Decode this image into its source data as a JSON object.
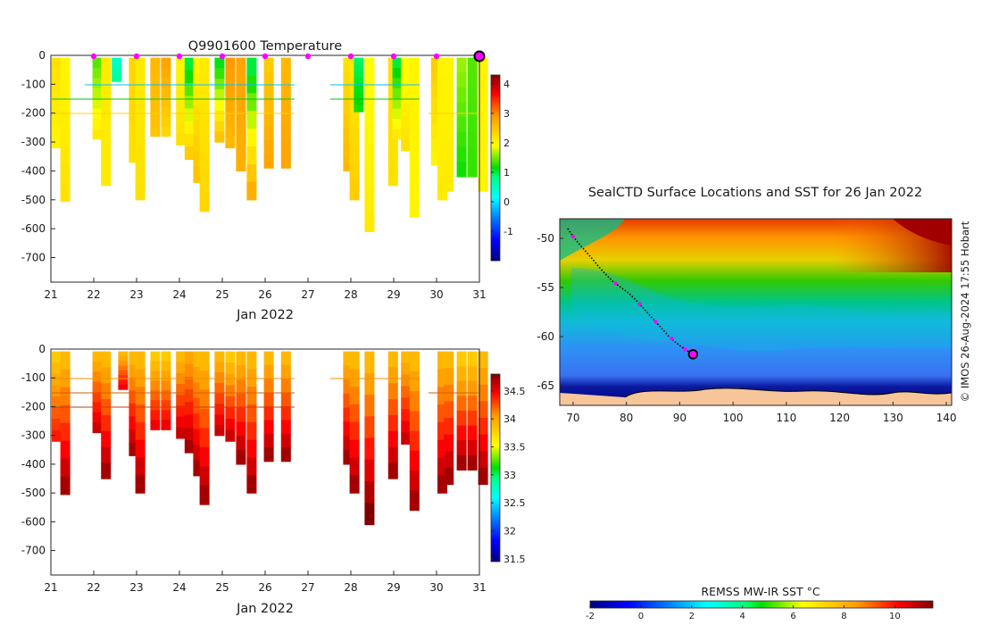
{
  "chart_data": [
    {
      "type": "heatmap",
      "name": "temperature-section",
      "title": "Q9901600  Temperature",
      "xlabel": "Jan 2022",
      "ylabel": "",
      "x_ticks": [
        "21",
        "22",
        "23",
        "24",
        "25",
        "26",
        "27",
        "28",
        "29",
        "30",
        "31"
      ],
      "xlim": [
        21,
        31
      ],
      "y_ticks": [
        "0",
        "-100",
        "-200",
        "-300",
        "-400",
        "-500",
        "-600",
        "-700"
      ],
      "ylim": [
        -785,
        0
      ],
      "colorbar": {
        "min": -2.0,
        "max": 4.3,
        "ticks": [
          "-1",
          "0",
          "1",
          "2",
          "3",
          "4"
        ],
        "colormap": "jet-like"
      },
      "surface_markers": [
        22.0,
        23.0,
        24.0,
        25.0,
        26.0,
        27.0,
        28.0,
        29.0,
        30.0
      ],
      "current_marker_day": 31.0,
      "profiles": [
        {
          "day": 21.0,
          "depth": -320,
          "surface": 2.2,
          "deep": 2.0
        },
        {
          "day": 21.2,
          "depth": -505,
          "surface": 2.0,
          "deep": 2.2
        },
        {
          "day": 21.95,
          "depth": -290,
          "surface": 1.4,
          "deep": 2.1
        },
        {
          "day": 22.15,
          "depth": -175,
          "surface": 1.2,
          "deep": 2.0
        },
        {
          "day": 22.15,
          "depth": -450,
          "surface": 2.1,
          "deep": 2.1
        },
        {
          "day": 22.4,
          "depth": -90,
          "surface": 0.4,
          "deep": 0.7
        },
        {
          "day": 22.8,
          "depth": -370,
          "surface": 2.3,
          "deep": 2.2
        },
        {
          "day": 22.95,
          "depth": -500,
          "surface": 2.1,
          "deep": 2.2
        },
        {
          "day": 23.3,
          "depth": -280,
          "surface": 2.6,
          "deep": 2.5
        },
        {
          "day": 23.55,
          "depth": -280,
          "surface": 2.8,
          "deep": 2.3
        },
        {
          "day": 23.9,
          "depth": -310,
          "surface": 2.0,
          "deep": 2.2
        },
        {
          "day": 24.1,
          "depth": -360,
          "surface": 1.0,
          "deep": 2.4
        },
        {
          "day": 24.3,
          "depth": -440,
          "surface": 2.0,
          "deep": 2.5
        },
        {
          "day": 24.45,
          "depth": -540,
          "surface": 2.1,
          "deep": 2.3
        },
        {
          "day": 24.8,
          "depth": -300,
          "surface": 1.1,
          "deep": 2.5
        },
        {
          "day": 25.05,
          "depth": -320,
          "surface": 2.9,
          "deep": 2.6
        },
        {
          "day": 25.3,
          "depth": -400,
          "surface": 2.8,
          "deep": 2.7
        },
        {
          "day": 25.55,
          "depth": -500,
          "surface": 1.0,
          "deep": 2.7
        },
        {
          "day": 25.95,
          "depth": -390,
          "surface": 2.4,
          "deep": 2.8
        },
        {
          "day": 26.35,
          "depth": -390,
          "surface": 2.6,
          "deep": 2.8
        },
        {
          "day": 27.8,
          "depth": -400,
          "surface": 2.2,
          "deep": 2.6
        },
        {
          "day": 27.95,
          "depth": -500,
          "surface": 2.1,
          "deep": 2.4
        },
        {
          "day": 28.05,
          "depth": -195,
          "surface": 0.9,
          "deep": 1.2
        },
        {
          "day": 28.3,
          "depth": -610,
          "surface": 1.9,
          "deep": 2.1
        },
        {
          "day": 28.85,
          "depth": -450,
          "surface": 2.2,
          "deep": 2.2
        },
        {
          "day": 28.95,
          "depth": -290,
          "surface": 1.0,
          "deep": 2.1
        },
        {
          "day": 29.15,
          "depth": -330,
          "surface": 1.9,
          "deep": 2.2
        },
        {
          "day": 29.35,
          "depth": -560,
          "surface": 2.0,
          "deep": 2.0
        },
        {
          "day": 29.85,
          "depth": -380,
          "surface": 2.4,
          "deep": 2.0
        },
        {
          "day": 30.0,
          "depth": -500,
          "surface": 2.0,
          "deep": 2.1
        },
        {
          "day": 30.15,
          "depth": -470,
          "surface": 2.0,
          "deep": 2.1
        },
        {
          "day": 30.45,
          "depth": -420,
          "surface": 1.6,
          "deep": 1.2
        },
        {
          "day": 30.7,
          "depth": -420,
          "surface": 1.4,
          "deep": 1.3
        },
        {
          "day": 30.95,
          "depth": -470,
          "surface": 2.0,
          "deep": 2.0
        }
      ]
    },
    {
      "type": "heatmap",
      "name": "salinity-section",
      "title": "",
      "xlabel": "Jan 2022",
      "x_ticks": [
        "21",
        "22",
        "23",
        "24",
        "25",
        "26",
        "27",
        "28",
        "29",
        "30",
        "31"
      ],
      "xlim": [
        21,
        31
      ],
      "y_ticks": [
        "0",
        "-100",
        "-200",
        "-300",
        "-400",
        "-500",
        "-600",
        "-700"
      ],
      "ylim": [
        -785,
        0
      ],
      "colorbar": {
        "min": 31.45,
        "max": 34.8,
        "ticks": [
          "31.5",
          "32",
          "32.5",
          "33",
          "33.5",
          "34",
          "34.5"
        ],
        "colormap": "jet-like"
      },
      "profiles": [
        {
          "day": 21.0,
          "depth": -320,
          "surface": 33.8,
          "deep": 34.4
        },
        {
          "day": 21.2,
          "depth": -505,
          "surface": 33.9,
          "deep": 34.7
        },
        {
          "day": 21.95,
          "depth": -290,
          "surface": 33.9,
          "deep": 34.6
        },
        {
          "day": 22.15,
          "depth": -450,
          "surface": 33.9,
          "deep": 34.7
        },
        {
          "day": 22.55,
          "depth": -140,
          "surface": 33.9,
          "deep": 34.5
        },
        {
          "day": 22.8,
          "depth": -370,
          "surface": 33.9,
          "deep": 34.7
        },
        {
          "day": 22.95,
          "depth": -500,
          "surface": 33.9,
          "deep": 34.7
        },
        {
          "day": 23.3,
          "depth": -280,
          "surface": 33.8,
          "deep": 34.5
        },
        {
          "day": 23.55,
          "depth": -280,
          "surface": 33.8,
          "deep": 34.5
        },
        {
          "day": 23.9,
          "depth": -310,
          "surface": 33.9,
          "deep": 34.6
        },
        {
          "day": 24.1,
          "depth": -360,
          "surface": 34.0,
          "deep": 34.7
        },
        {
          "day": 24.3,
          "depth": -440,
          "surface": 33.9,
          "deep": 34.7
        },
        {
          "day": 24.45,
          "depth": -540,
          "surface": 33.9,
          "deep": 34.7
        },
        {
          "day": 24.8,
          "depth": -300,
          "surface": 33.9,
          "deep": 34.6
        },
        {
          "day": 25.05,
          "depth": -320,
          "surface": 33.8,
          "deep": 34.6
        },
        {
          "day": 25.3,
          "depth": -400,
          "surface": 33.9,
          "deep": 34.7
        },
        {
          "day": 25.55,
          "depth": -500,
          "surface": 33.9,
          "deep": 34.7
        },
        {
          "day": 25.95,
          "depth": -390,
          "surface": 33.9,
          "deep": 34.7
        },
        {
          "day": 26.35,
          "depth": -390,
          "surface": 33.9,
          "deep": 34.7
        },
        {
          "day": 27.8,
          "depth": -400,
          "surface": 33.9,
          "deep": 34.7
        },
        {
          "day": 27.95,
          "depth": -500,
          "surface": 33.9,
          "deep": 34.7
        },
        {
          "day": 28.3,
          "depth": -610,
          "surface": 33.9,
          "deep": 34.8
        },
        {
          "day": 28.85,
          "depth": -450,
          "surface": 33.9,
          "deep": 34.7
        },
        {
          "day": 29.15,
          "depth": -330,
          "surface": 33.9,
          "deep": 34.6
        },
        {
          "day": 29.35,
          "depth": -560,
          "surface": 33.9,
          "deep": 34.7
        },
        {
          "day": 30.0,
          "depth": -500,
          "surface": 33.9,
          "deep": 34.7
        },
        {
          "day": 30.15,
          "depth": -470,
          "surface": 33.9,
          "deep": 34.7
        },
        {
          "day": 30.45,
          "depth": -420,
          "surface": 33.8,
          "deep": 34.7
        },
        {
          "day": 30.7,
          "depth": -420,
          "surface": 33.8,
          "deep": 34.7
        },
        {
          "day": 30.95,
          "depth": -470,
          "surface": 33.9,
          "deep": 34.7
        }
      ]
    },
    {
      "type": "heatmap",
      "name": "sst-map",
      "title": "SealCTD Surface Locations and SST for 26 Jan 2022",
      "x_ticks": [
        "70",
        "80",
        "90",
        "100",
        "110",
        "120",
        "130",
        "140"
      ],
      "xlim": [
        67.5,
        141
      ],
      "y_ticks": [
        "-50",
        "-55",
        "-60",
        "-65"
      ],
      "ylim": [
        -67,
        -48
      ],
      "colorbar": {
        "label": "REMSS MW-IR SST °C",
        "min": -2,
        "max": 11.5,
        "ticks": [
          "-2",
          "0",
          "2",
          "4",
          "6",
          "8",
          "10"
        ],
        "colormap": "jet-like"
      },
      "track": [
        {
          "lon": 69.0,
          "lat": -49.0
        },
        {
          "lon": 70.0,
          "lat": -49.8
        },
        {
          "lon": 71.2,
          "lat": -50.6
        },
        {
          "lon": 72.5,
          "lat": -51.4
        },
        {
          "lon": 73.8,
          "lat": -52.2
        },
        {
          "lon": 75.0,
          "lat": -53.0
        },
        {
          "lon": 76.2,
          "lat": -53.7
        },
        {
          "lon": 77.5,
          "lat": -54.4
        },
        {
          "lon": 79.0,
          "lat": -55.0
        },
        {
          "lon": 80.5,
          "lat": -55.6
        },
        {
          "lon": 82.0,
          "lat": -56.4
        },
        {
          "lon": 83.5,
          "lat": -57.3
        },
        {
          "lon": 85.0,
          "lat": -58.2
        },
        {
          "lon": 86.5,
          "lat": -59.1
        },
        {
          "lon": 88.0,
          "lat": -60.0
        },
        {
          "lon": 89.5,
          "lat": -60.7
        },
        {
          "lon": 91.0,
          "lat": -61.3
        },
        {
          "lon": 92.5,
          "lat": -61.8
        }
      ],
      "daily_positions": [
        {
          "lon": 70.0,
          "lat": -49.8
        },
        {
          "lon": 78.0,
          "lat": -54.6
        },
        {
          "lon": 82.5,
          "lat": -56.7
        },
        {
          "lon": 85.5,
          "lat": -58.5
        },
        {
          "lon": 88.5,
          "lat": -60.2
        },
        {
          "lon": 91.0,
          "lat": -61.3
        }
      ],
      "current_position": {
        "lon": 92.5,
        "lat": -61.8
      },
      "side_note": "© IMOS 26-Aug-2024 17:55 Hobart"
    }
  ]
}
